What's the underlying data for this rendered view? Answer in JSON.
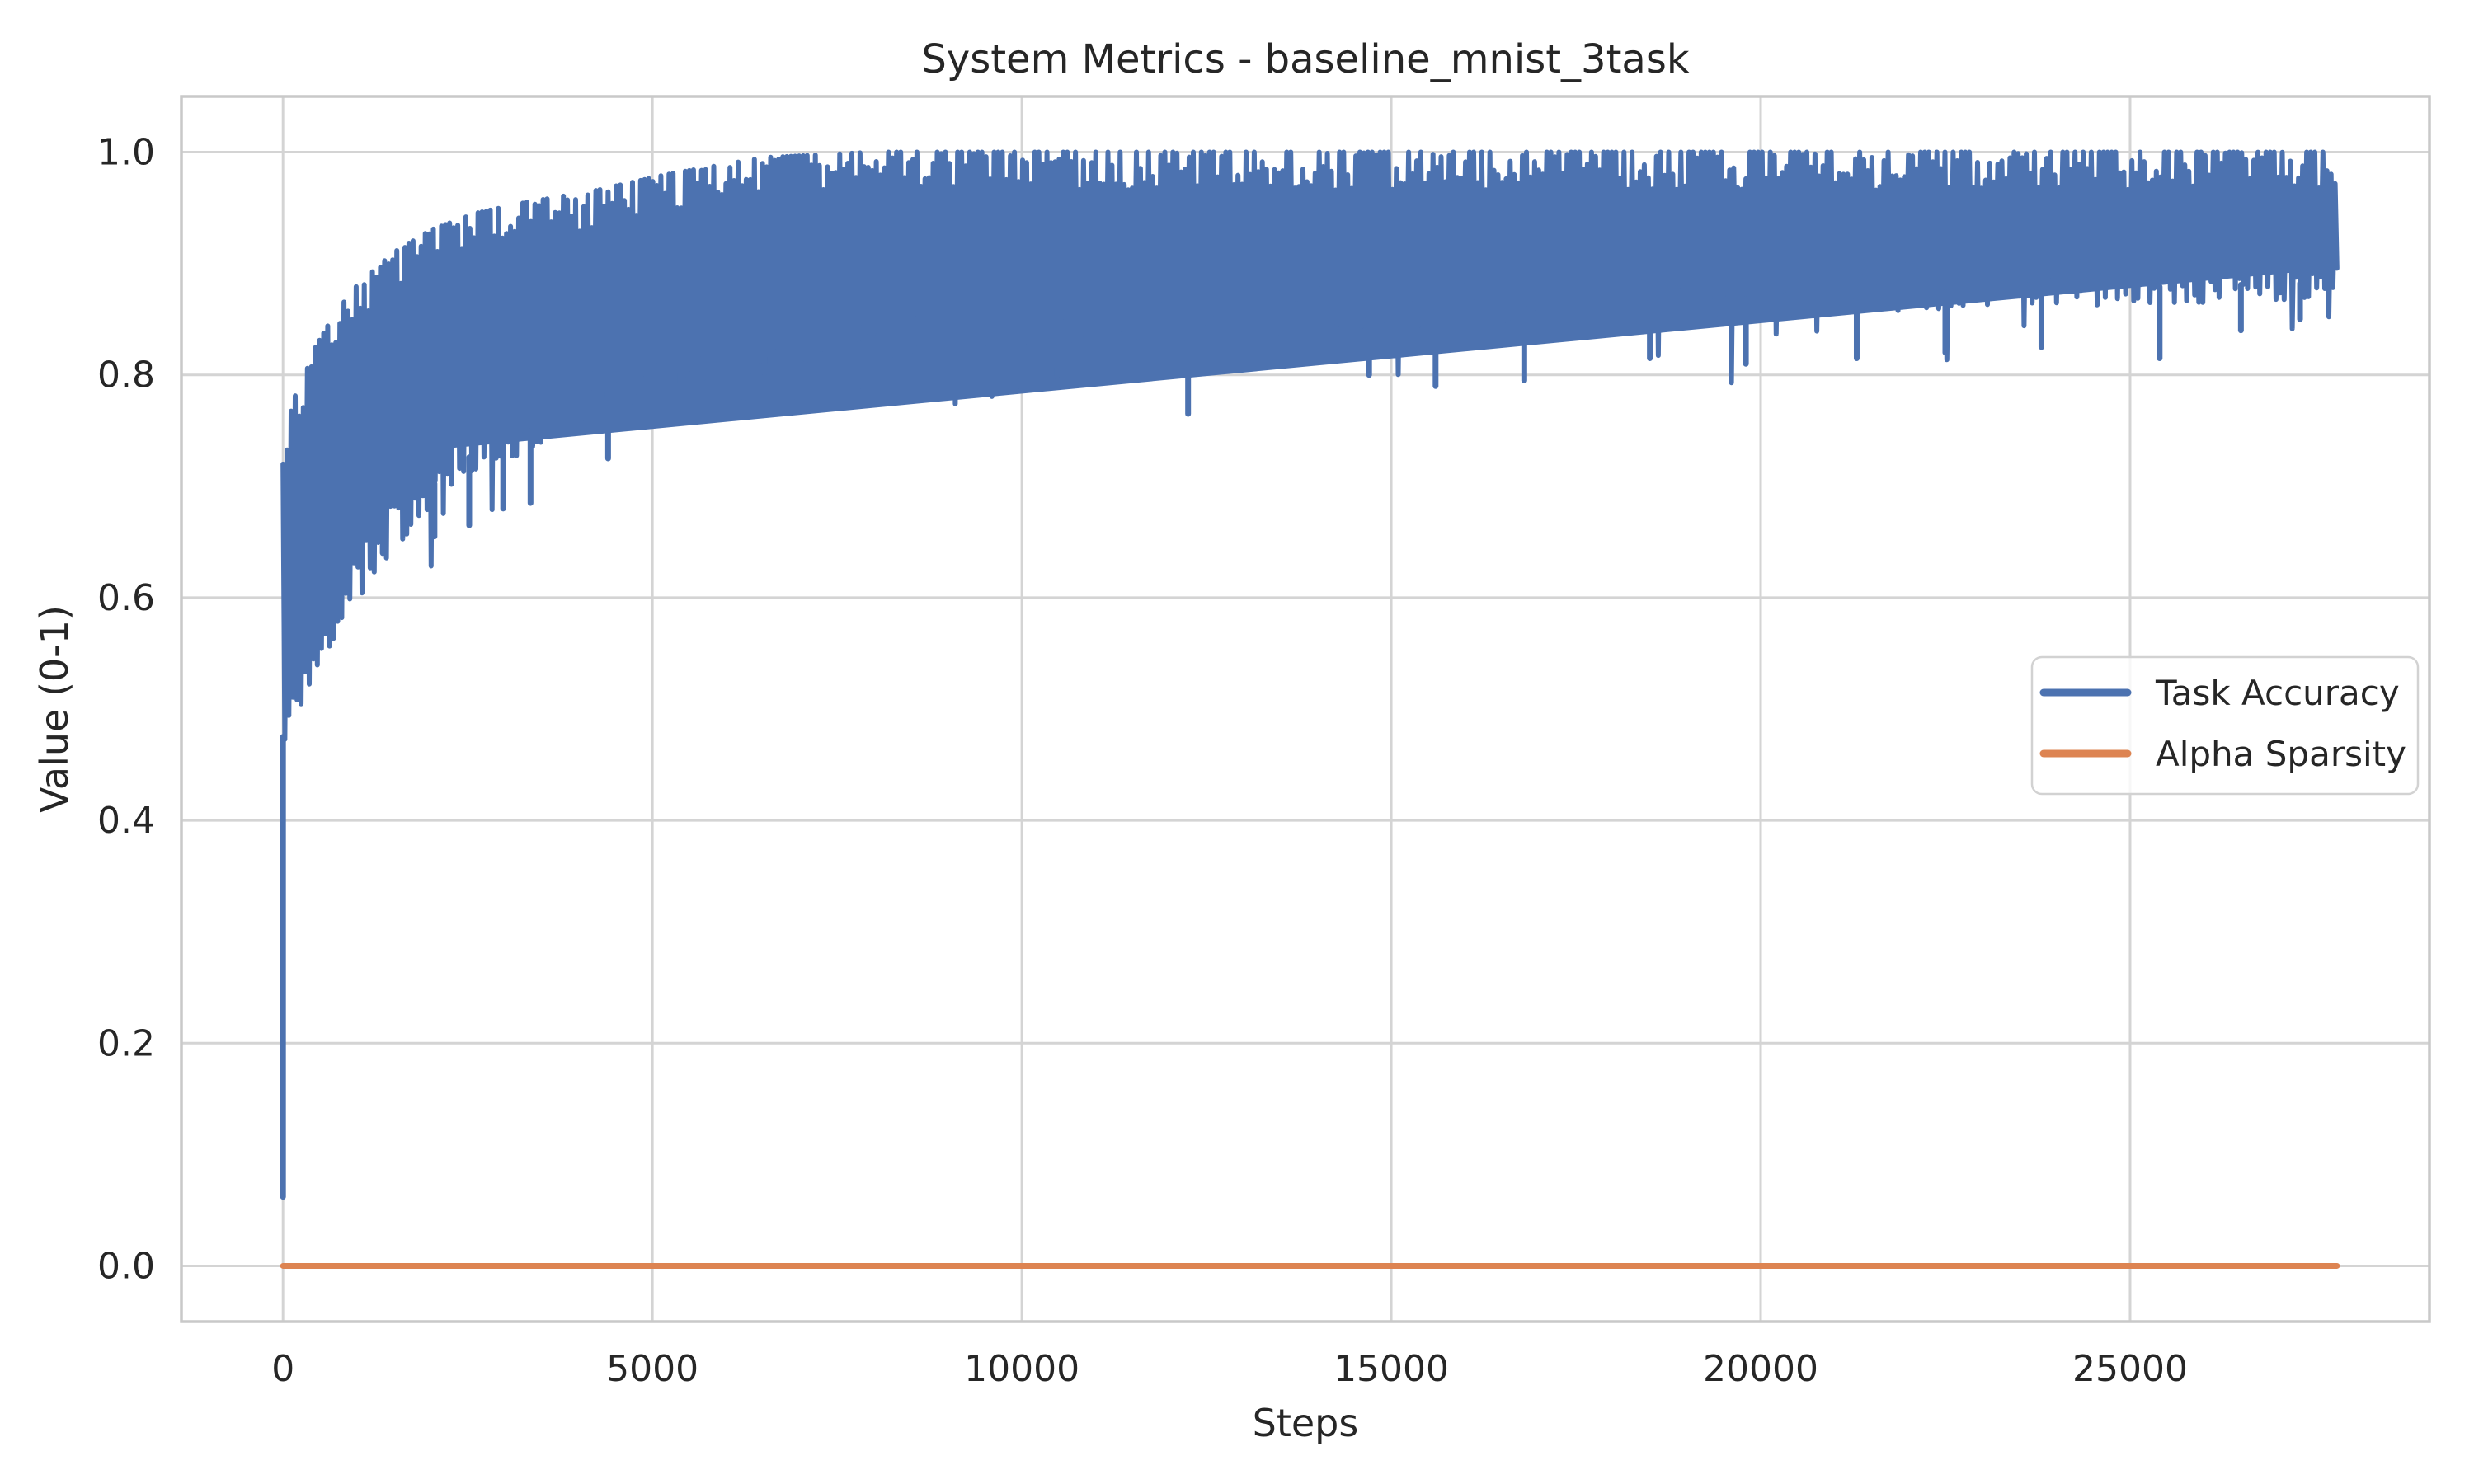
{
  "page": {
    "title": "System Metrics - baseline_mnist_3task"
  },
  "chart_data": {
    "type": "line",
    "title": "System Metrics - baseline_mnist_3task",
    "xlabel": "Steps",
    "ylabel": "Value (0-1)",
    "x_ticks": [
      0,
      5000,
      10000,
      15000,
      20000,
      25000
    ],
    "y_ticks": [
      0.0,
      0.2,
      0.4,
      0.6,
      0.8,
      1.0
    ],
    "xlim": [
      -1375,
      29052
    ],
    "ylim": [
      -0.05,
      1.05
    ],
    "grid": true,
    "legend": {
      "position": "center-right",
      "labels": [
        "Task Accuracy",
        "Alpha Sparsity"
      ]
    },
    "colors": {
      "task_accuracy": "#4c72b0",
      "alpha_sparsity": "#dd8452",
      "grid": "#d4d4d4",
      "spine": "#c9c9c9",
      "text": "#262626",
      "background": "#ffffff"
    },
    "series": [
      {
        "name": "Task Accuracy",
        "color": "#4c72b0",
        "style": "noisy-band",
        "x_start": 0,
        "x_end": 27800,
        "envelope": [
          [
            0,
            0.46,
            0.74
          ],
          [
            200,
            0.5,
            0.79
          ],
          [
            400,
            0.53,
            0.82
          ],
          [
            700,
            0.565,
            0.855
          ],
          [
            1000,
            0.6,
            0.88
          ],
          [
            1500,
            0.645,
            0.91
          ],
          [
            2000,
            0.685,
            0.93
          ],
          [
            2600,
            0.715,
            0.945
          ],
          [
            3300,
            0.73,
            0.955
          ],
          [
            4200,
            0.765,
            0.965
          ],
          [
            5200,
            0.785,
            0.98
          ],
          [
            6500,
            0.8,
            0.995
          ],
          [
            8000,
            0.815,
            1.0
          ],
          [
            10000,
            0.825,
            1.0
          ],
          [
            12500,
            0.833,
            1.0
          ],
          [
            15000,
            0.84,
            1.0
          ],
          [
            18000,
            0.849,
            1.0
          ],
          [
            21000,
            0.856,
            1.0
          ],
          [
            24000,
            0.862,
            1.0
          ],
          [
            26000,
            0.865,
            1.0
          ],
          [
            27800,
            0.868,
            1.0
          ]
        ],
        "dips": [
          [
            0,
            0.062
          ],
          [
            650,
            0.615
          ],
          [
            1350,
            0.64
          ],
          [
            2050,
            0.655
          ],
          [
            2520,
            0.665
          ],
          [
            2980,
            0.68
          ],
          [
            3350,
            0.685
          ],
          [
            4400,
            0.725
          ],
          [
            5300,
            0.76
          ],
          [
            6600,
            0.785
          ],
          [
            7800,
            0.79
          ],
          [
            9200,
            0.8
          ],
          [
            10400,
            0.8
          ],
          [
            11300,
            0.805
          ],
          [
            12250,
            0.765
          ],
          [
            13600,
            0.81
          ],
          [
            14700,
            0.8
          ],
          [
            15600,
            0.79
          ],
          [
            16800,
            0.795
          ],
          [
            18500,
            0.815
          ],
          [
            19800,
            0.81
          ],
          [
            21300,
            0.815
          ],
          [
            22500,
            0.82
          ],
          [
            23800,
            0.825
          ],
          [
            25400,
            0.815
          ],
          [
            26500,
            0.84
          ],
          [
            27300,
            0.85
          ]
        ]
      },
      {
        "name": "Alpha Sparsity",
        "color": "#dd8452",
        "style": "flat",
        "points": [
          [
            0,
            0.0
          ],
          [
            27800,
            0.0
          ]
        ]
      }
    ]
  }
}
